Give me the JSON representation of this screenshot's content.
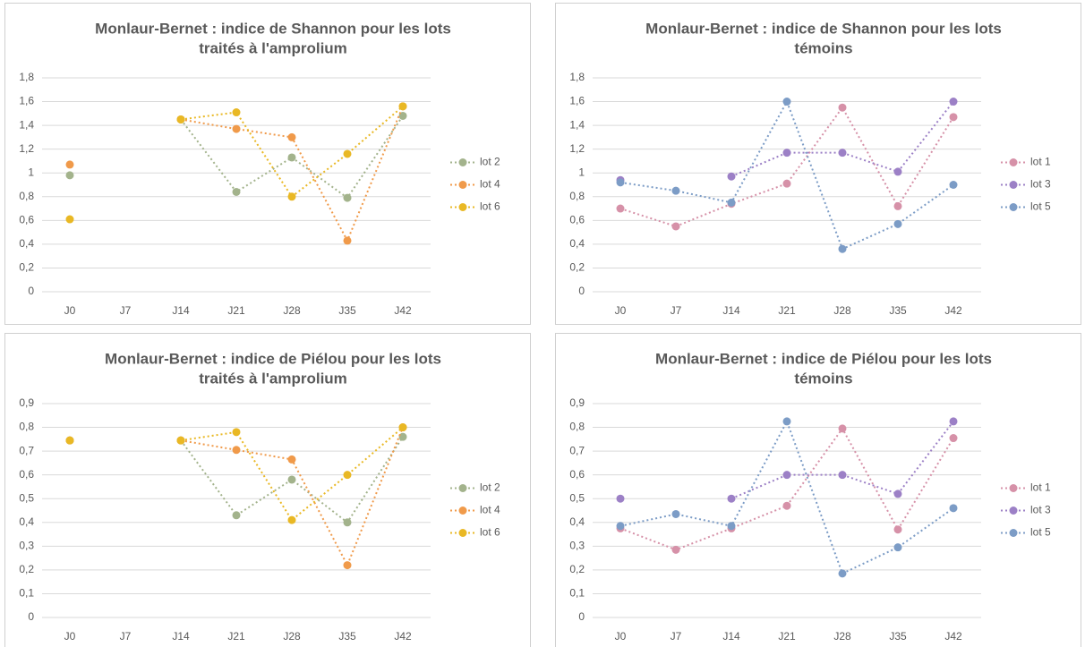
{
  "chart_data": [
    {
      "type": "line",
      "title": [
        "Monlaur-Bernet : indice de Shannon pour les lots",
        "traités à l'amprolium"
      ],
      "categories": [
        "J0",
        "J7",
        "J14",
        "J21",
        "J28",
        "J35",
        "J42"
      ],
      "series": [
        {
          "name": "lot 2",
          "color": "#a3b38c",
          "values": [
            0.98,
            null,
            1.45,
            0.84,
            1.13,
            0.79,
            1.48
          ]
        },
        {
          "name": "lot 4",
          "color": "#f09a4a",
          "values": [
            1.07,
            null,
            1.45,
            1.37,
            1.3,
            0.43,
            1.56
          ]
        },
        {
          "name": "lot 6",
          "color": "#e9b824",
          "values": [
            0.61,
            null,
            1.45,
            1.51,
            0.8,
            1.16,
            1.56
          ]
        }
      ],
      "ylim": [
        0,
        1.8
      ],
      "yticks": [
        0,
        {
          "value": 0.2,
          "label": "0,2"
        },
        {
          "value": 0.4,
          "label": "0,4"
        },
        {
          "value": 0.6,
          "label": "0,6"
        },
        {
          "value": 0.8,
          "label": "0,8"
        },
        1,
        {
          "value": 1.2,
          "label": "1,2"
        },
        {
          "value": 1.4,
          "label": "1,4"
        },
        {
          "value": 1.6,
          "label": "1,6"
        },
        {
          "value": 1.8,
          "label": "1,8"
        }
      ],
      "grid": true,
      "legend": "right"
    },
    {
      "type": "line",
      "title": [
        "Monlaur-Bernet : indice de Shannon pour les lots",
        "témoins"
      ],
      "categories": [
        "J0",
        "J7",
        "J14",
        "J21",
        "J28",
        "J35",
        "J42"
      ],
      "series": [
        {
          "name": "lot 1",
          "color": "#d691a8",
          "values": [
            0.7,
            0.55,
            0.74,
            0.91,
            1.55,
            0.72,
            1.47
          ]
        },
        {
          "name": "lot 3",
          "color": "#9c80c6",
          "values": [
            0.94,
            null,
            0.97,
            1.17,
            1.17,
            1.01,
            1.6
          ]
        },
        {
          "name": "lot 5",
          "color": "#7c9cc6",
          "values": [
            0.92,
            0.85,
            0.75,
            1.6,
            0.36,
            0.57,
            0.9
          ]
        }
      ],
      "ylim": [
        0,
        1.8
      ],
      "yticks": [
        0,
        {
          "value": 0.2,
          "label": "0,2"
        },
        {
          "value": 0.4,
          "label": "0,4"
        },
        {
          "value": 0.6,
          "label": "0,6"
        },
        {
          "value": 0.8,
          "label": "0,8"
        },
        1,
        {
          "value": 1.2,
          "label": "1,2"
        },
        {
          "value": 1.4,
          "label": "1,4"
        },
        {
          "value": 1.6,
          "label": "1,6"
        },
        {
          "value": 1.8,
          "label": "1,8"
        }
      ],
      "grid": true,
      "legend": "right"
    },
    {
      "type": "line",
      "title": [
        "Monlaur-Bernet : indice de Piélou pour les lots",
        "traités à l'amprolium"
      ],
      "categories": [
        "J0",
        "J7",
        "J14",
        "J21",
        "J28",
        "J35",
        "J42"
      ],
      "series": [
        {
          "name": "lot 2",
          "color": "#a3b38c",
          "values": [
            0.745,
            null,
            0.745,
            0.43,
            0.58,
            0.4,
            0.76
          ]
        },
        {
          "name": "lot 4",
          "color": "#f09a4a",
          "values": [
            0.745,
            null,
            0.745,
            0.705,
            0.665,
            0.22,
            0.8
          ]
        },
        {
          "name": "lot 6",
          "color": "#e9b824",
          "values": [
            0.745,
            null,
            0.745,
            0.78,
            0.41,
            0.6,
            0.8
          ]
        }
      ],
      "ylim": [
        0,
        0.9
      ],
      "yticks": [
        0,
        {
          "value": 0.1,
          "label": "0,1"
        },
        {
          "value": 0.2,
          "label": "0,2"
        },
        {
          "value": 0.3,
          "label": "0,3"
        },
        {
          "value": 0.4,
          "label": "0,4"
        },
        {
          "value": 0.5,
          "label": "0,5"
        },
        {
          "value": 0.6,
          "label": "0,6"
        },
        {
          "value": 0.7,
          "label": "0,7"
        },
        {
          "value": 0.8,
          "label": "0,8"
        },
        {
          "value": 0.9,
          "label": "0,9"
        }
      ],
      "grid": true,
      "legend": "right"
    },
    {
      "type": "line",
      "title": [
        "Monlaur-Bernet : indice de Piélou pour les lots",
        "témoins"
      ],
      "categories": [
        "J0",
        "J7",
        "J14",
        "J21",
        "J28",
        "J35",
        "J42"
      ],
      "series": [
        {
          "name": "lot 1",
          "color": "#d691a8",
          "values": [
            0.375,
            0.285,
            0.375,
            0.47,
            0.795,
            0.37,
            0.755
          ]
        },
        {
          "name": "lot 3",
          "color": "#9c80c6",
          "values": [
            0.5,
            null,
            0.5,
            0.6,
            0.6,
            0.52,
            0.825
          ]
        },
        {
          "name": "lot 5",
          "color": "#7c9cc6",
          "values": [
            0.385,
            0.435,
            0.385,
            0.825,
            0.185,
            0.295,
            0.46
          ]
        }
      ],
      "ylim": [
        0,
        0.9
      ],
      "yticks": [
        0,
        {
          "value": 0.1,
          "label": "0,1"
        },
        {
          "value": 0.2,
          "label": "0,2"
        },
        {
          "value": 0.3,
          "label": "0,3"
        },
        {
          "value": 0.4,
          "label": "0,4"
        },
        {
          "value": 0.5,
          "label": "0,5"
        },
        {
          "value": 0.6,
          "label": "0,6"
        },
        {
          "value": 0.7,
          "label": "0,7"
        },
        {
          "value": 0.8,
          "label": "0,8"
        },
        {
          "value": 0.9,
          "label": "0,9"
        }
      ],
      "grid": true,
      "legend": "right"
    }
  ]
}
